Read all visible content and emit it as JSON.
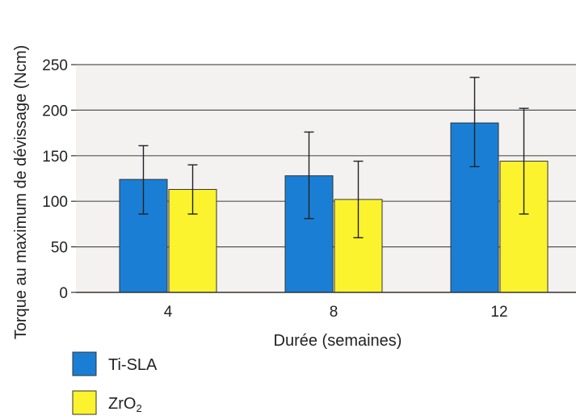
{
  "chart_data": {
    "type": "bar",
    "categories": [
      "4",
      "8",
      "12"
    ],
    "series": [
      {
        "name": "Ti-SLA",
        "values": [
          124,
          128,
          186
        ],
        "err_low": [
          86,
          81,
          138
        ],
        "err_high": [
          161,
          176,
          236
        ],
        "color": "#1a7fd4"
      },
      {
        "name": "ZrO2",
        "values": [
          113,
          102,
          144
        ],
        "err_low": [
          86,
          60,
          86
        ],
        "err_high": [
          140,
          144,
          202
        ],
        "color": "#fbf32e"
      }
    ],
    "xlabel": "Durée (semaines)",
    "ylabel": "Torque au maximum de dévissage (Ncm)",
    "ylim": [
      0,
      250
    ],
    "yticks": [
      "0",
      "50",
      "100",
      "150",
      "200",
      "250"
    ],
    "grid": true,
    "legend_position": "bottom-left",
    "plot_background": "#f3f2f1"
  }
}
